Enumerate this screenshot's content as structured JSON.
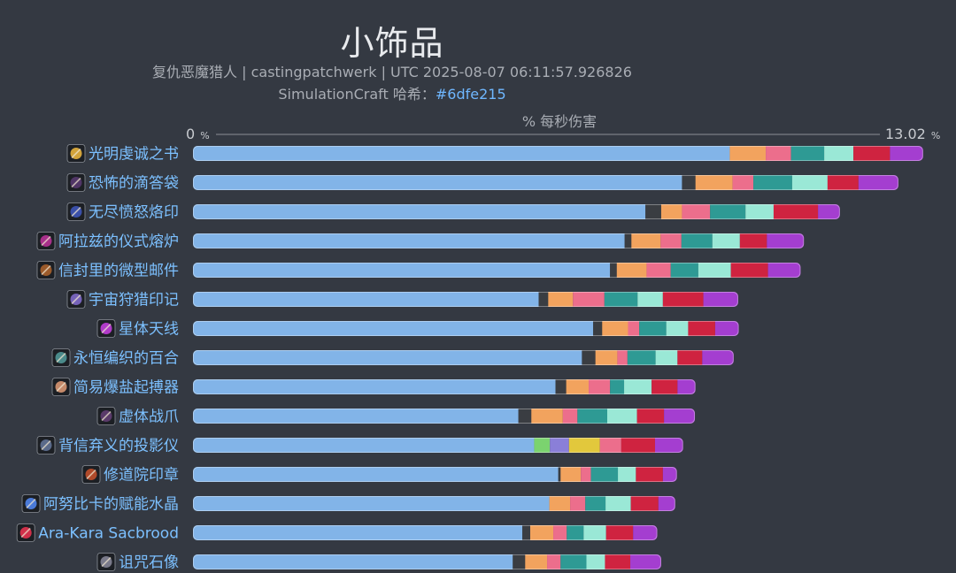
{
  "header": {
    "title": "小饰品",
    "subtitle_line1": "复仇恶魔猎人 | castingpatchwerk | UTC 2025-08-07 06:11:57.926826",
    "subtitle_prefix": "SimulationCraft 哈希：",
    "hash": "#6dfe215"
  },
  "chart_data": {
    "type": "bar",
    "orientation": "horizontal",
    "stacked": true,
    "axis_title": "% 每秒伤害",
    "xlim": [
      0,
      13.02
    ],
    "tick_left": "0",
    "tick_right": "13.02",
    "unit": "%",
    "colors": [
      "#82b4e8",
      "#3a3d42",
      "#f2a35e",
      "#ec6e8c",
      "#2e9a94",
      "#9ae8d6",
      "#cf2340",
      "#a43ed0"
    ],
    "extra_colors": {
      "green": "#7bd36f",
      "purple": "#8a7fd8",
      "yellow": "#e2c83c"
    },
    "categories": [
      "光明虔诚之书",
      "恐怖的滴答袋",
      "无尽愤怒烙印",
      "阿拉兹的仪式熔炉",
      "信封里的微型邮件",
      "宇宙狩猎印记",
      "星体天线",
      "永恒编织的百合",
      "简易爆盐起搏器",
      "虚体战爪",
      "背信弃义的投影仪",
      "修道院印章",
      "阿努比卡的赋能水晶",
      "Ara-Kara Sacbrood",
      "诅咒石像"
    ],
    "icons": [
      {
        "name": "book-icon",
        "color": "#d2a33a"
      },
      {
        "name": "pouch-icon",
        "color": "#503566"
      },
      {
        "name": "brand-icon",
        "color": "#3a4fa8"
      },
      {
        "name": "forge-icon",
        "color": "#a8308a"
      },
      {
        "name": "mail-icon",
        "color": "#9b5a2a"
      },
      {
        "name": "mark-icon",
        "color": "#7562b8"
      },
      {
        "name": "antenna-icon",
        "color": "#b03ac8"
      },
      {
        "name": "lily-icon",
        "color": "#4a8a8a"
      },
      {
        "name": "pacemaker-icon",
        "color": "#c58a6a"
      },
      {
        "name": "claw-icon",
        "color": "#5a3a6a"
      },
      {
        "name": "projector-icon",
        "color": "#5a6a8a"
      },
      {
        "name": "seal-icon",
        "color": "#b04a2a"
      },
      {
        "name": "crystal-icon",
        "color": "#4a7ad8"
      },
      {
        "name": "sacbrood-icon",
        "color": "#d0304a"
      },
      {
        "name": "statue-icon",
        "color": "#7a7a8a"
      }
    ],
    "segments": [
      [
        9.55,
        0,
        0.64,
        0.45,
        0.59,
        0.52,
        0.65,
        0.59
      ],
      [
        8.7,
        0.24,
        0.66,
        0.37,
        0.69,
        0.63,
        0.55,
        0.71
      ],
      [
        8.05,
        0.28,
        0.37,
        0.5,
        0.63,
        0.5,
        0.79,
        0.39
      ],
      [
        7.68,
        0.12,
        0.52,
        0.37,
        0.55,
        0.49,
        0.48,
        0.66
      ],
      [
        7.42,
        0.12,
        0.53,
        0.43,
        0.49,
        0.58,
        0.66,
        0.58
      ],
      [
        6.15,
        0.17,
        0.44,
        0.56,
        0.59,
        0.45,
        0.72,
        0.62
      ],
      [
        7.12,
        0.16,
        0.46,
        0.2,
        0.48,
        0.39,
        0.48,
        0.42
      ],
      [
        6.92,
        0.24,
        0.39,
        0.18,
        0.5,
        0.39,
        0.44,
        0.56
      ],
      [
        6.45,
        0.19,
        0.4,
        0.38,
        0.25,
        0.49,
        0.46,
        0.32
      ],
      [
        5.79,
        0.23,
        0.56,
        0.26,
        0.53,
        0.53,
        0.48,
        0.55
      ],
      [
        6.07,
        0,
        0,
        0,
        0,
        0,
        0.94,
        0.5
      ],
      [
        6.5,
        0.04,
        0.36,
        0.18,
        0.48,
        0.32,
        0.48,
        0.25
      ],
      [
        6.34,
        0,
        0.37,
        0.27,
        0.36,
        0.45,
        0.49,
        0.3
      ],
      [
        5.86,
        0.14,
        0.41,
        0.24,
        0.3,
        0.4,
        0.48,
        0.43
      ],
      [
        5.69,
        0.22,
        0.39,
        0.24,
        0.46,
        0.33,
        0.45,
        0.55
      ]
    ],
    "projector_segments": [
      {
        "color": "#82b4e8",
        "value": 6.07
      },
      {
        "color": "#7bd36f",
        "value": 0.28
      },
      {
        "color": "#8a7fd8",
        "value": 0.34
      },
      {
        "color": "#e2c83c",
        "value": 0.55
      },
      {
        "color": "#ec6e8c",
        "value": 0.38
      },
      {
        "color": "#cf2340",
        "value": 0.6
      },
      {
        "color": "#a43ed0",
        "value": 0.5
      }
    ]
  }
}
